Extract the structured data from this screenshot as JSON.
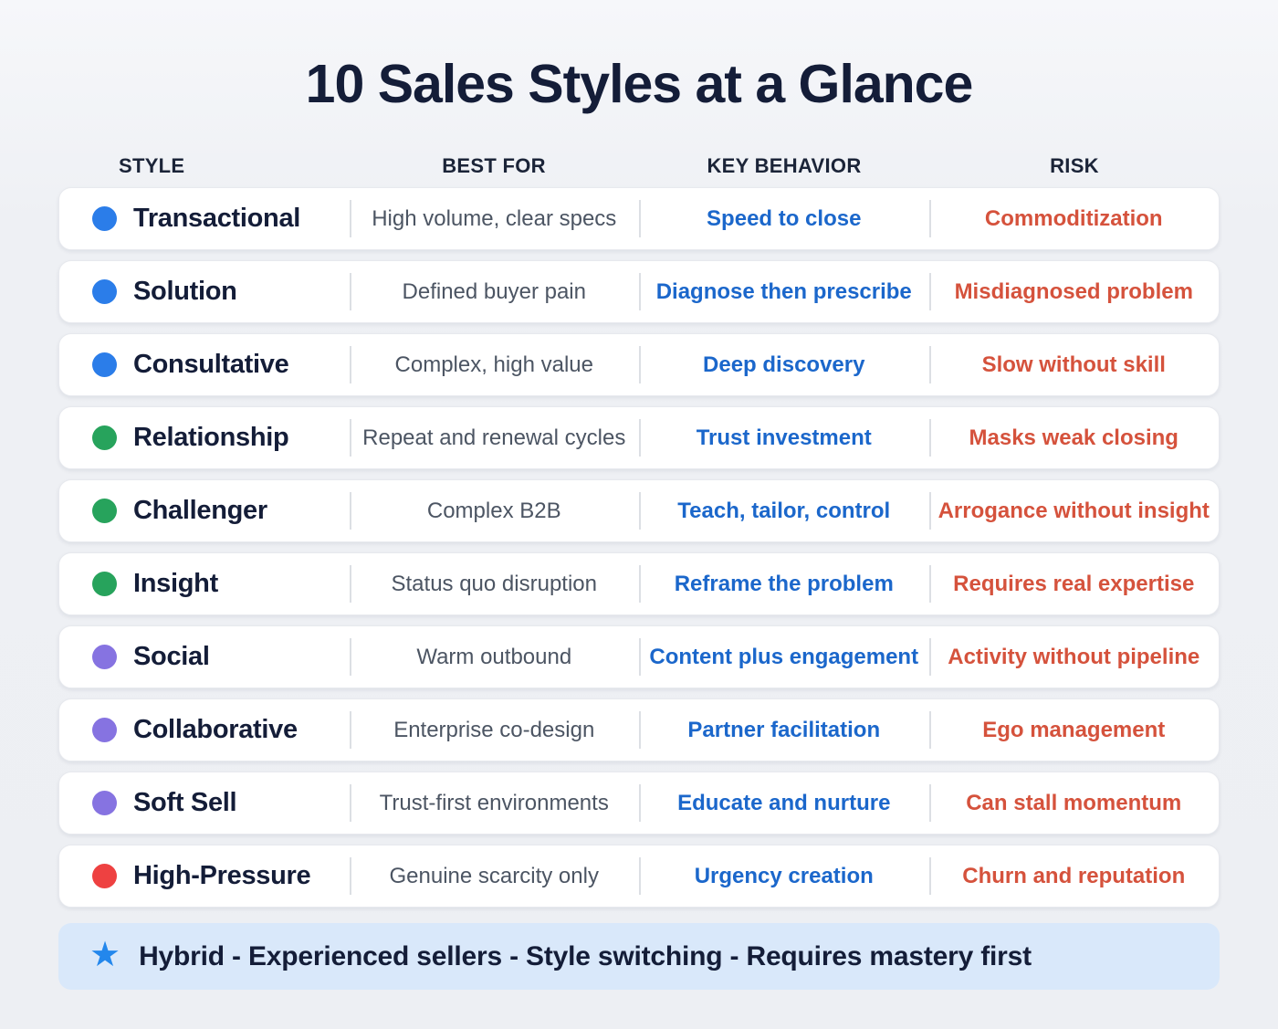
{
  "title": "10 Sales Styles at a Glance",
  "columns": [
    "STYLE",
    "BEST FOR",
    "KEY BEHAVIOR",
    "RISK"
  ],
  "rows": [
    {
      "style": "Transactional",
      "dot_color": "blue",
      "best_for": "High volume, clear specs",
      "key_behavior": "Speed to close",
      "risk": "Commoditization"
    },
    {
      "style": "Solution",
      "dot_color": "blue",
      "best_for": "Defined buyer pain",
      "key_behavior": "Diagnose then prescribe",
      "risk": "Misdiagnosed problem"
    },
    {
      "style": "Consultative",
      "dot_color": "blue",
      "best_for": "Complex, high value",
      "key_behavior": "Deep discovery",
      "risk": "Slow without skill"
    },
    {
      "style": "Relationship",
      "dot_color": "green",
      "best_for": "Repeat and renewal cycles",
      "key_behavior": "Trust investment",
      "risk": "Masks weak closing"
    },
    {
      "style": "Challenger",
      "dot_color": "green",
      "best_for": "Complex B2B",
      "key_behavior": "Teach, tailor, control",
      "risk": "Arrogance without insight"
    },
    {
      "style": "Insight",
      "dot_color": "green",
      "best_for": "Status quo disruption",
      "key_behavior": "Reframe the problem",
      "risk": "Requires real expertise"
    },
    {
      "style": "Social",
      "dot_color": "purple",
      "best_for": "Warm outbound",
      "key_behavior": "Content plus engagement",
      "risk": "Activity without pipeline"
    },
    {
      "style": "Collaborative",
      "dot_color": "purple",
      "best_for": "Enterprise co-design",
      "key_behavior": "Partner facilitation",
      "risk": "Ego management"
    },
    {
      "style": "Soft Sell",
      "dot_color": "purple",
      "best_for": "Trust-first environments",
      "key_behavior": "Educate and nurture",
      "risk": "Can stall momentum"
    },
    {
      "style": "High-Pressure",
      "dot_color": "red",
      "best_for": "Genuine scarcity only",
      "key_behavior": "Urgency creation",
      "risk": "Churn and reputation"
    }
  ],
  "footer": {
    "icon": "star-icon",
    "star_glyph": "★",
    "text": "Hybrid - Experienced sellers - Style switching - Requires mastery first"
  },
  "colors": {
    "navy_text": "#141d38",
    "dot_blue": "#2b7de9",
    "dot_green": "#27a35c",
    "dot_purple": "#8673e1",
    "dot_red": "#ee4141",
    "behavior_text": "#1b67cb",
    "risk_text": "#d5523c",
    "footer_bg": "#d9e8fa",
    "star_blue": "#2387ec",
    "best_for_text": "#4c5563"
  }
}
